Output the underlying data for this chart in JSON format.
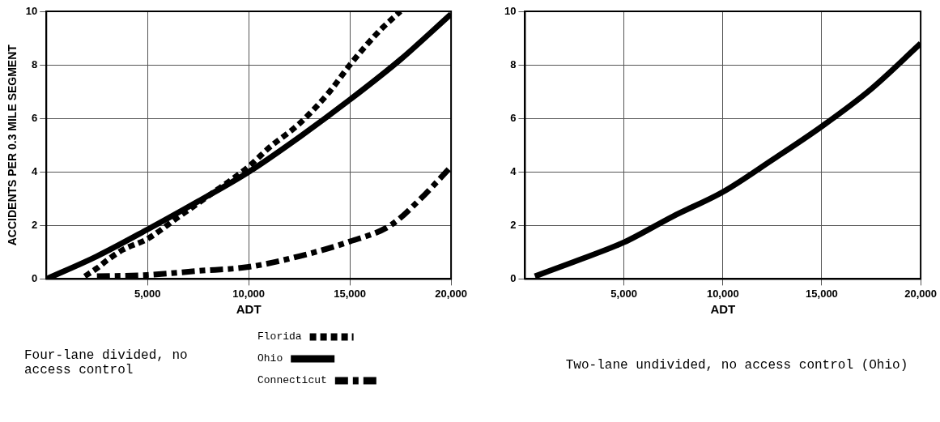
{
  "chart_data": [
    {
      "type": "line",
      "xlabel": "ADT",
      "ylabel": "ACCIDENTS PER 0.3 MILE SEGMENT",
      "xlim": [
        0,
        20000
      ],
      "ylim": [
        0,
        10
      ],
      "xticks": [
        {
          "value": 5000,
          "label": "5,000"
        },
        {
          "value": 10000,
          "label": "10,000"
        },
        {
          "value": 15000,
          "label": "15,000"
        },
        {
          "value": 20000,
          "label": "20,000"
        }
      ],
      "yticks": [
        0,
        2,
        4,
        6,
        8,
        10
      ],
      "grid": true,
      "legend": "bottom",
      "annotations": [
        "Four-lane divided, no access control"
      ],
      "series": [
        {
          "name": "Florida",
          "color": "#000000",
          "line_style": "dotted",
          "x": [
            1900,
            2500,
            3000,
            3800,
            5000,
            6500,
            8000,
            10000,
            11000,
            12500,
            14000,
            15000,
            16500,
            17500
          ],
          "values": [
            0.1,
            0.4,
            0.7,
            1.1,
            1.5,
            2.3,
            3.1,
            4.2,
            4.9,
            5.8,
            7.0,
            8.0,
            9.3,
            10.0
          ]
        },
        {
          "name": "Ohio",
          "color": "#000000",
          "line_style": "solid",
          "x": [
            0,
            2500,
            5000,
            7500,
            10000,
            12500,
            15000,
            17500,
            20000
          ],
          "values": [
            0,
            0.85,
            1.85,
            2.9,
            4.0,
            5.3,
            6.7,
            8.2,
            9.9
          ]
        },
        {
          "name": "Connecticut",
          "color": "#000000",
          "line_style": "dashed",
          "x": [
            2500,
            5000,
            7500,
            10000,
            12500,
            15000,
            17000,
            18500,
            20000
          ],
          "values": [
            0.1,
            0.15,
            0.3,
            0.45,
            0.85,
            1.4,
            2.0,
            3.0,
            4.2
          ]
        }
      ]
    },
    {
      "type": "line",
      "xlabel": "ADT",
      "xlim": [
        0,
        20000
      ],
      "ylim": [
        0,
        10
      ],
      "xticks": [
        {
          "value": 5000,
          "label": "5,000"
        },
        {
          "value": 10000,
          "label": "10,000"
        },
        {
          "value": 15000,
          "label": "15,000"
        },
        {
          "value": 20000,
          "label": "20,000"
        }
      ],
      "yticks": [
        0,
        2,
        4,
        6,
        8,
        10
      ],
      "grid": true,
      "annotations": [
        "Two-lane undivided, no access control (Ohio)"
      ],
      "series": [
        {
          "color": "#000000",
          "line_style": "solid",
          "x": [
            500,
            2500,
            5000,
            7500,
            10000,
            12500,
            15000,
            17500,
            20000
          ],
          "values": [
            0.1,
            0.65,
            1.37,
            2.35,
            3.25,
            4.45,
            5.7,
            7.1,
            8.8
          ]
        }
      ]
    }
  ]
}
